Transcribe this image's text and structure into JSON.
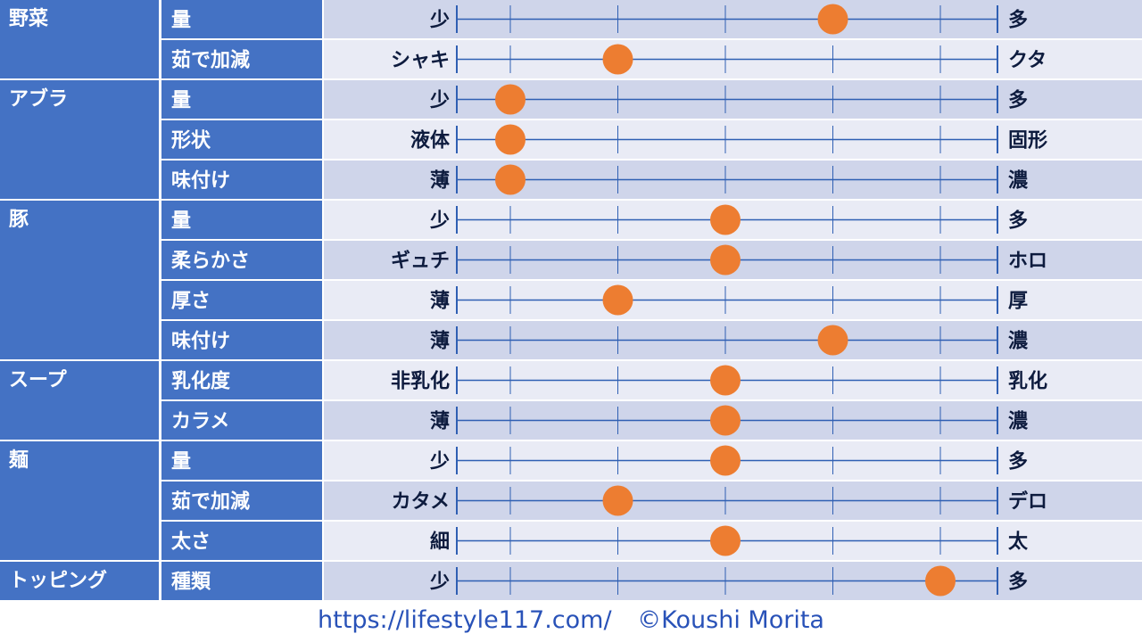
{
  "chart_data": {
    "type": "scatter",
    "scale_points": 5,
    "categories": [
      {
        "name": "野菜",
        "rows": [
          {
            "attribute": "量",
            "left": "少",
            "right": "多",
            "value": 4
          },
          {
            "attribute": "茹で加減",
            "left": "シャキ",
            "right": "クタ",
            "value": 2
          }
        ]
      },
      {
        "name": "アブラ",
        "rows": [
          {
            "attribute": "量",
            "left": "少",
            "right": "多",
            "value": 1
          },
          {
            "attribute": "形状",
            "left": "液体",
            "right": "固形",
            "value": 1
          },
          {
            "attribute": "味付け",
            "left": "薄",
            "right": "濃",
            "value": 1
          }
        ]
      },
      {
        "name": "豚",
        "rows": [
          {
            "attribute": "量",
            "left": "少",
            "right": "多",
            "value": 3
          },
          {
            "attribute": "柔らかさ",
            "left": "ギュチ",
            "right": "ホロ",
            "value": 3
          },
          {
            "attribute": "厚さ",
            "left": "薄",
            "right": "厚",
            "value": 2
          },
          {
            "attribute": "味付け",
            "left": "薄",
            "right": "濃",
            "value": 4
          }
        ]
      },
      {
        "name": "スープ",
        "rows": [
          {
            "attribute": "乳化度",
            "left": "非乳化",
            "right": "乳化",
            "value": 3
          },
          {
            "attribute": "カラメ",
            "left": "薄",
            "right": "濃",
            "value": 3
          }
        ]
      },
      {
        "name": "麺",
        "rows": [
          {
            "attribute": "量",
            "left": "少",
            "right": "多",
            "value": 3
          },
          {
            "attribute": "茹で加減",
            "left": "カタメ",
            "right": "デロ",
            "value": 2
          },
          {
            "attribute": "太さ",
            "left": "細",
            "right": "太",
            "value": 3
          }
        ]
      },
      {
        "name": "トッピング",
        "rows": [
          {
            "attribute": "種類",
            "left": "少",
            "right": "多",
            "value": 5
          }
        ]
      }
    ]
  },
  "colors": {
    "label_fill": "#4472c4",
    "row_dark": "#cfd5ea",
    "row_light": "#e9ebf5",
    "scale_line": "#2f5fb3",
    "marker": "#ed7d31",
    "end_text": "#0d1b3e",
    "footer_text": "#2952b8"
  },
  "footer": {
    "url": "https://lifestyle117.com/",
    "copyright": "©Koushi Morita"
  }
}
